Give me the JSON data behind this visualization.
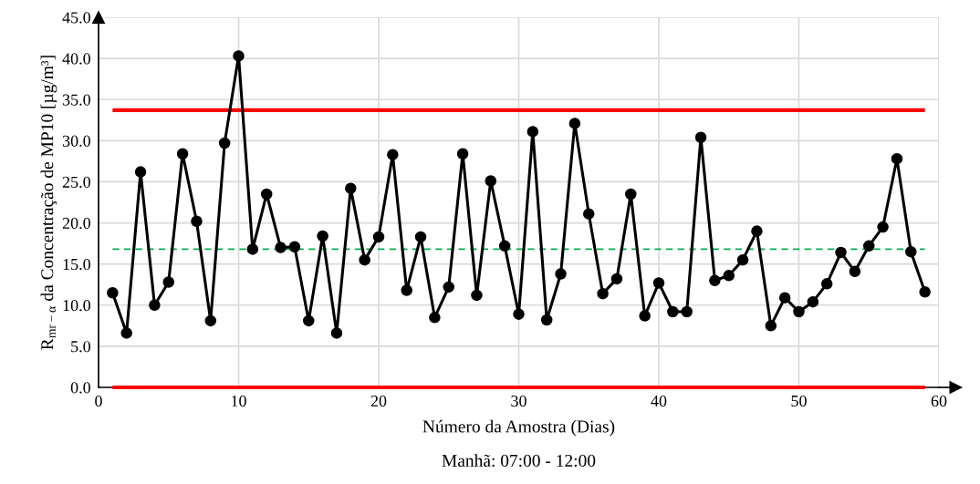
{
  "chart_data": {
    "type": "line",
    "xlabel": "Número da Amostra (Dias)",
    "ylabel": "R$_{mr−α}$ da Concentração de MP10 [µg/m³]",
    "annotations": [
      "Manhã: 07:00 - 12:00"
    ],
    "x": [
      1,
      2,
      3,
      4,
      5,
      6,
      7,
      8,
      9,
      10,
      11,
      12,
      13,
      14,
      15,
      16,
      17,
      18,
      19,
      20,
      21,
      22,
      23,
      24,
      25,
      26,
      27,
      28,
      29,
      30,
      31,
      32,
      33,
      34,
      35,
      36,
      37,
      38,
      39,
      40,
      41,
      42,
      43,
      44,
      45,
      46,
      47,
      48,
      49,
      50,
      51,
      52,
      53,
      54,
      55,
      56,
      57,
      58,
      59
    ],
    "series": [
      {
        "color": "#000000",
        "values": [
          11.5,
          6.6,
          26.2,
          10.0,
          12.8,
          28.4,
          20.2,
          8.1,
          29.7,
          40.3,
          16.8,
          23.5,
          17.0,
          17.1,
          8.1,
          18.4,
          6.6,
          24.2,
          15.5,
          18.3,
          28.3,
          11.8,
          18.3,
          8.5,
          12.2,
          28.4,
          11.2,
          25.1,
          17.2,
          8.9,
          31.1,
          8.2,
          13.8,
          32.1,
          21.1,
          11.4,
          13.2,
          23.5,
          8.7,
          12.7,
          9.2,
          9.2,
          30.4,
          13.0,
          13.6,
          15.5,
          19.0,
          7.5,
          10.9,
          9.2,
          10.4,
          12.6,
          16.4,
          14.1,
          17.2,
          19.5,
          27.8,
          16.5,
          11.6
        ]
      }
    ],
    "ref_lines": [
      {
        "axis": "y",
        "value": 33.7,
        "color": "#ff0000",
        "line_style": "solid"
      },
      {
        "axis": "y",
        "value": 16.8,
        "color": "#00b050",
        "line_style": "dashed"
      },
      {
        "axis": "y",
        "value": 0,
        "color": "#ff0000",
        "line_style": "solid"
      }
    ],
    "xlim": [
      0,
      60
    ],
    "xticks": [
      0,
      10,
      20,
      30,
      40,
      50,
      60
    ],
    "ylim": [
      0,
      45
    ],
    "yticks": [
      {
        "value": 0,
        "label": "0.0"
      },
      {
        "value": 5,
        "label": "5.0"
      },
      {
        "value": 10,
        "label": "10.0"
      },
      {
        "value": 15,
        "label": "15.0"
      },
      {
        "value": 20,
        "label": "20.0"
      },
      {
        "value": 25,
        "label": "25.0"
      },
      {
        "value": 30,
        "label": "30.0"
      },
      {
        "value": 35,
        "label": "35.0"
      },
      {
        "value": 40,
        "label": "40.0"
      },
      {
        "value": 45,
        "label": "45.0"
      }
    ],
    "grid": true,
    "marker": "circle",
    "line_style": "solid",
    "legend": false
  }
}
